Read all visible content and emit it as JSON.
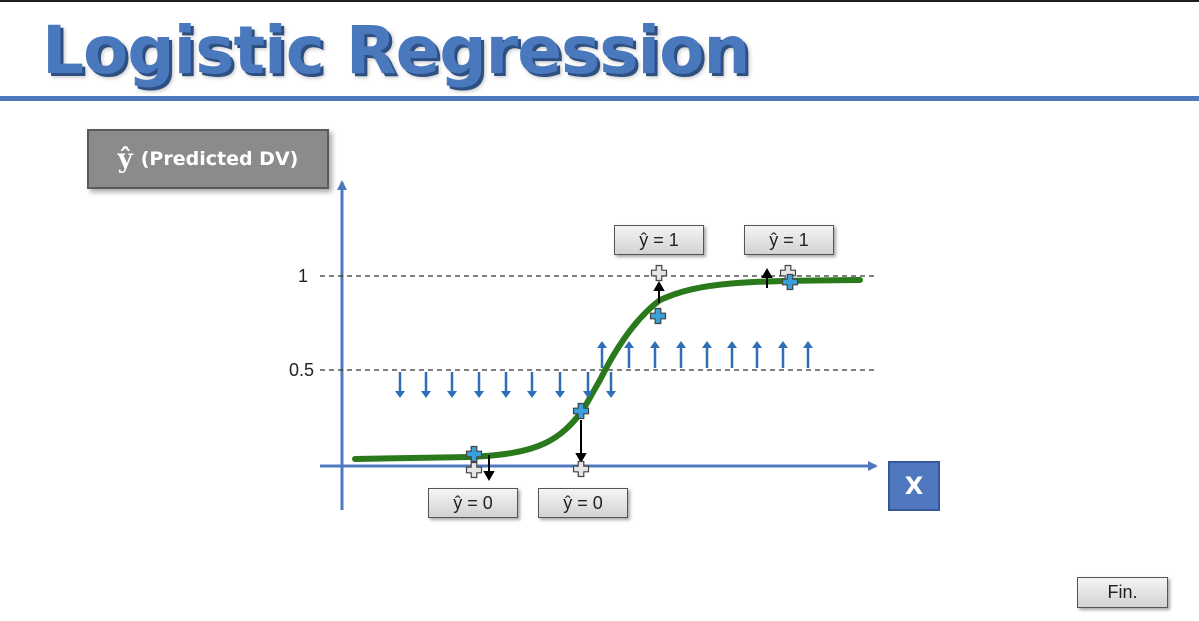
{
  "title": "Logistic Regression",
  "y_axis_label": {
    "symbol": "ŷ",
    "text": "(Predicted DV)"
  },
  "x_axis_label": "X",
  "y_ticks": [
    "1",
    "0.5"
  ],
  "prediction_labels": {
    "top_left": "ŷ = 1",
    "top_right": "ŷ = 1",
    "bottom_left": "ŷ = 0",
    "bottom_right": "ŷ = 0"
  },
  "fin_button": "Fin.",
  "colors": {
    "title": "#4a78bd",
    "axis": "#4f78bf",
    "curve": "#2a7a1c",
    "arrows": "#2f6fb5",
    "marker": "#3aa0dc"
  }
}
